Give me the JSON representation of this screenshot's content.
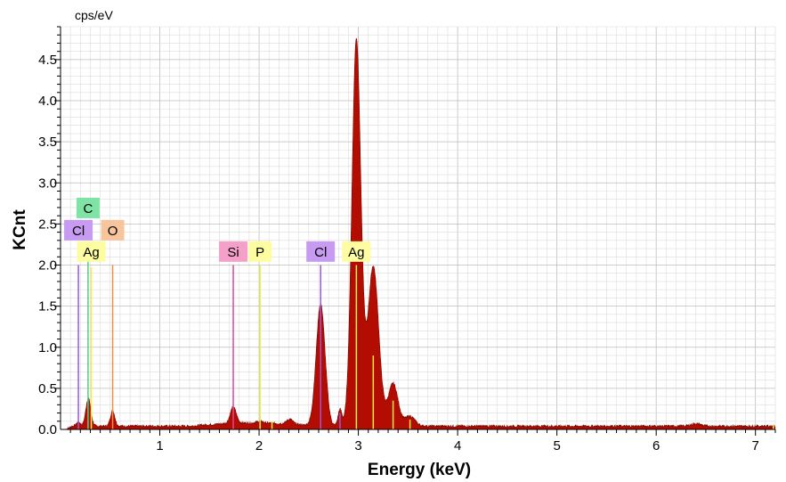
{
  "chart_data": {
    "type": "area",
    "title": "",
    "xlabel": "Energy (keV)",
    "ylabel": "KCnt",
    "y_unit_label": "cps/eV",
    "xlim": [
      0,
      7.2
    ],
    "ylim": [
      0,
      4.9
    ],
    "grid": true,
    "fill_color": "#b30c00",
    "x_ticks": [
      1,
      2,
      3,
      4,
      5,
      6,
      7
    ],
    "y_ticks": [
      0.0,
      0.5,
      1.0,
      1.5,
      2.0,
      2.5,
      3.0,
      3.5,
      4.0,
      4.5
    ],
    "x_tick_labels": [
      "1",
      "2",
      "3",
      "4",
      "5",
      "6",
      "7"
    ],
    "y_tick_labels": [
      "0.0",
      "0.5",
      "1.0",
      "1.5",
      "2.0",
      "2.5",
      "3.0",
      "3.5",
      "4.0",
      "4.5"
    ],
    "spectrum": {
      "baseline": 0.04,
      "peaks": [
        {
          "x": 0.18,
          "height": 0.05,
          "width": 0.02
        },
        {
          "x": 0.28,
          "height": 0.34,
          "width": 0.025
        },
        {
          "x": 0.525,
          "height": 0.19,
          "width": 0.022
        },
        {
          "x": 1.74,
          "height": 0.2,
          "width": 0.03
        },
        {
          "x": 2.01,
          "height": 0.02,
          "width": 0.03
        },
        {
          "x": 2.31,
          "height": 0.06,
          "width": 0.03
        },
        {
          "x": 2.62,
          "height": 1.49,
          "width": 0.045
        },
        {
          "x": 2.815,
          "height": 0.2,
          "width": 0.02
        },
        {
          "x": 2.98,
          "height": 4.71,
          "width": 0.045
        },
        {
          "x": 3.15,
          "height": 1.95,
          "width": 0.055
        },
        {
          "x": 3.35,
          "height": 0.52,
          "width": 0.05
        },
        {
          "x": 3.52,
          "height": 0.12,
          "width": 0.05
        },
        {
          "x": 6.4,
          "height": 0.03,
          "width": 0.05
        }
      ]
    },
    "element_markers": [
      {
        "label": "C",
        "energy": 0.277,
        "line_top": 2.2,
        "label_y": 2.57,
        "color": "#7fe3a6",
        "line_color": "#5cc98a"
      },
      {
        "label": "Cl",
        "energy": 0.18,
        "line_top": 2.0,
        "label_y": 2.3,
        "color": "#c79bf2",
        "line_color": "#9b59d9"
      },
      {
        "label": "O",
        "energy": 0.525,
        "line_top": 2.0,
        "label_y": 2.3,
        "color": "#f8c49b",
        "line_color": "#f09040"
      },
      {
        "label": "Ag",
        "energy": 0.31,
        "line_top": 1.97,
        "label_y": 2.04,
        "color": "#fdfca0",
        "line_color": "#eeee44"
      },
      {
        "label": "Si",
        "energy": 1.74,
        "line_top": 2.0,
        "label_y": 2.04,
        "color": "#f5a0c8",
        "line_color": "#e2459a"
      },
      {
        "label": "P",
        "energy": 2.01,
        "line_top": 2.0,
        "label_y": 2.04,
        "color": "#fdfca0",
        "line_color": "#eeee44"
      },
      {
        "label": "Cl",
        "energy": 2.62,
        "line_top": 2.0,
        "label_y": 2.04,
        "color": "#c79bf2",
        "line_color": "#9b59d9"
      },
      {
        "label": "Ag",
        "energy": 2.98,
        "line_top": 2.0,
        "label_y": 2.04,
        "color": "#fdfca0",
        "line_color": "#eeee44"
      }
    ],
    "minor_lines": [
      {
        "energy": 3.15,
        "height": 0.9,
        "color": "#eeee44"
      },
      {
        "energy": 3.35,
        "height": 0.35,
        "color": "#eeee44"
      },
      {
        "energy": 3.52,
        "height": 0.12,
        "color": "#eeee44"
      },
      {
        "energy": 2.815,
        "height": 0.2,
        "color": "#9b59d9"
      },
      {
        "energy": 2.13,
        "height": 0.1,
        "color": "#eeee44"
      },
      {
        "energy": 7.18,
        "height": 0.06,
        "color": "#eeee44"
      }
    ]
  }
}
